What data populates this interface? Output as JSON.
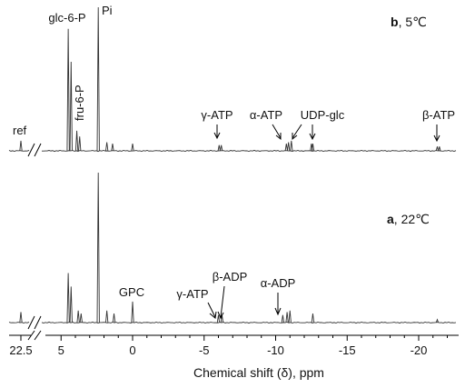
{
  "chart_data": {
    "type": "line",
    "xlabel": "Chemical shift (δ), ppm",
    "xaxis": {
      "reversed": true,
      "break_between": [
        22.5,
        5
      ],
      "ticks": [
        "22.5",
        "5",
        "0",
        "-5",
        "-10",
        "-15",
        "-20"
      ]
    },
    "panels": [
      {
        "label_letter": "b",
        "label_rest": ", 5℃",
        "peaks": [
          {
            "x": 22.5,
            "h": 0.07
          },
          {
            "x": 4.5,
            "h": 0.85
          },
          {
            "x": 4.3,
            "h": 0.62
          },
          {
            "x": 3.9,
            "h": 0.14
          },
          {
            "x": 3.7,
            "h": 0.1
          },
          {
            "x": 2.4,
            "h": 1.0
          },
          {
            "x": 1.8,
            "h": 0.06
          },
          {
            "x": 1.4,
            "h": 0.05
          },
          {
            "x": 0.0,
            "h": 0.05
          },
          {
            "x": -6.05,
            "h": 0.04
          },
          {
            "x": -6.2,
            "h": 0.04
          },
          {
            "x": -10.75,
            "h": 0.05
          },
          {
            "x": -10.9,
            "h": 0.06
          },
          {
            "x": -11.1,
            "h": 0.07
          },
          {
            "x": -12.5,
            "h": 0.05
          },
          {
            "x": -12.6,
            "h": 0.05
          },
          {
            "x": -21.3,
            "h": 0.03
          },
          {
            "x": -21.45,
            "h": 0.03
          }
        ],
        "annotations": [
          {
            "text": "glc-6-P",
            "vertical": false
          },
          {
            "text": "fru-6-P",
            "vertical": true
          },
          {
            "text": "Pi",
            "vertical": false
          },
          {
            "text": "ref",
            "vertical": false
          },
          {
            "text": "γ-ATP",
            "vertical": false
          },
          {
            "text": "α-ATP",
            "vertical": false
          },
          {
            "text": "UDP-glc",
            "vertical": false
          },
          {
            "text": "β-ATP",
            "vertical": false
          }
        ]
      },
      {
        "label_letter": "a",
        "label_rest": ", 22℃",
        "peaks": [
          {
            "x": 22.5,
            "h": 0.07
          },
          {
            "x": 4.5,
            "h": 0.33
          },
          {
            "x": 4.3,
            "h": 0.24
          },
          {
            "x": 3.8,
            "h": 0.08
          },
          {
            "x": 3.6,
            "h": 0.06
          },
          {
            "x": 2.4,
            "h": 1.0
          },
          {
            "x": 1.8,
            "h": 0.08
          },
          {
            "x": 1.3,
            "h": 0.06
          },
          {
            "x": 0.0,
            "h": 0.14
          },
          {
            "x": -6.0,
            "h": 0.05
          },
          {
            "x": -6.25,
            "h": 0.05
          },
          {
            "x": -10.5,
            "h": 0.05
          },
          {
            "x": -10.8,
            "h": 0.07
          },
          {
            "x": -11.0,
            "h": 0.08
          },
          {
            "x": -12.6,
            "h": 0.06
          },
          {
            "x": -21.3,
            "h": 0.02
          }
        ],
        "annotations": [
          {
            "text": "GPC",
            "vertical": false
          },
          {
            "text": "γ-ATP",
            "vertical": false
          },
          {
            "text": "β-ADP",
            "vertical": false
          },
          {
            "text": "α-ADP",
            "vertical": false
          }
        ]
      }
    ]
  }
}
